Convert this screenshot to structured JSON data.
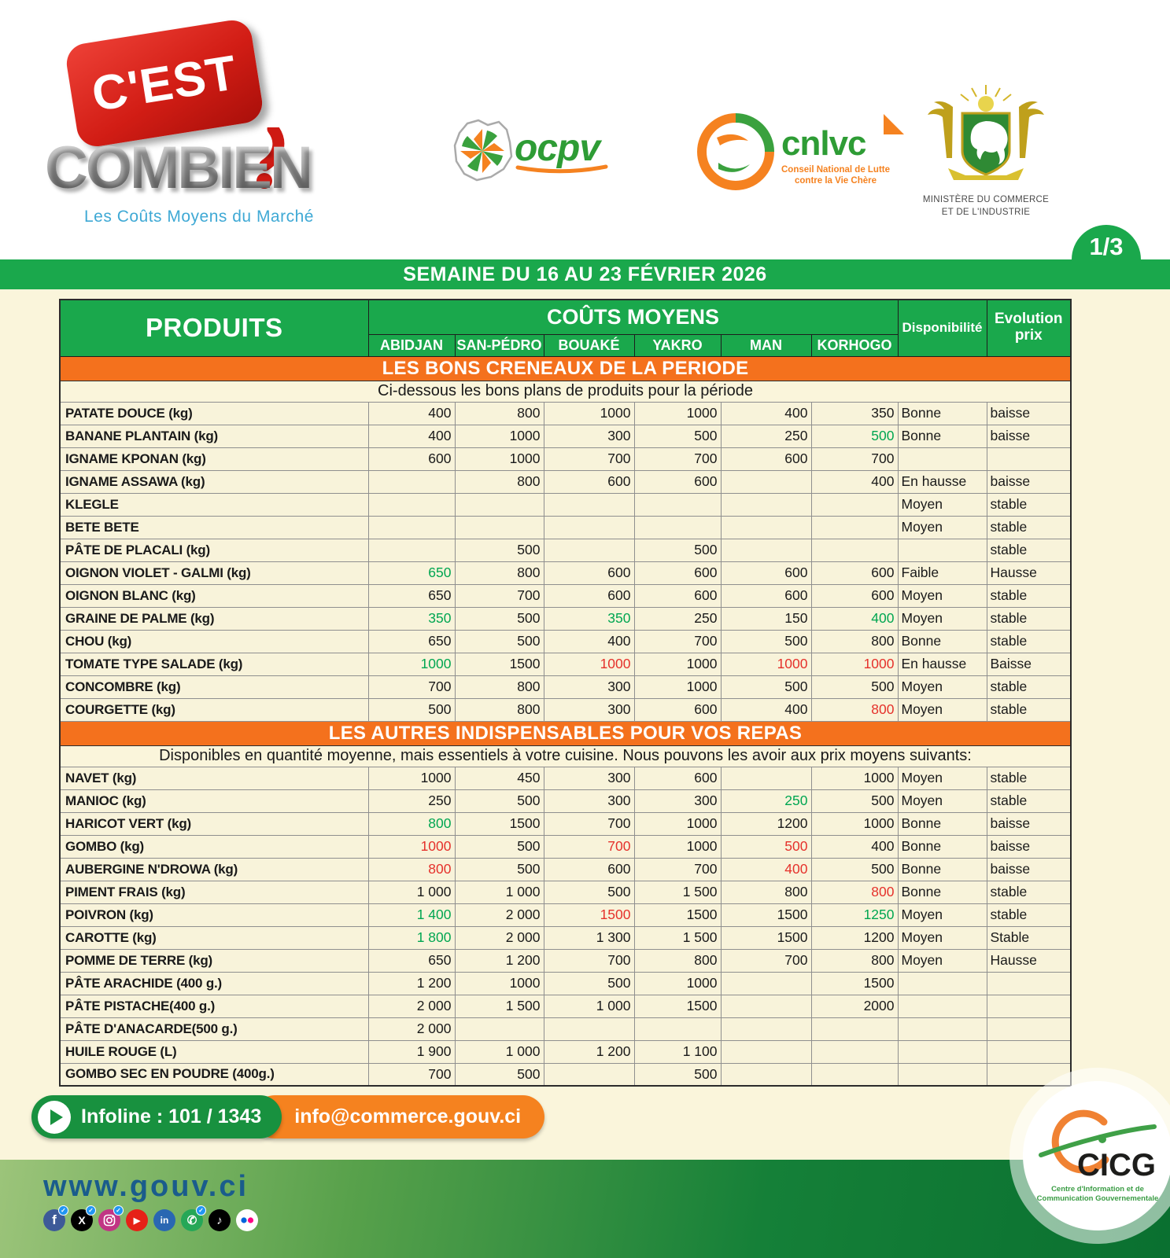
{
  "banner": {
    "title": "SEMAINE DU 16 AU 23 FÉVRIER 2026",
    "page_badge": "1/3"
  },
  "brand": {
    "bubble": "C'EST",
    "name": "COMBIEN",
    "tagline": "Les Coûts Moyens du Marché"
  },
  "partners": {
    "ocpv": "ocpv",
    "cnlvc": "cnlvc",
    "cnlvc_sub1": "Conseil National de Lutte",
    "cnlvc_sub2": "contre la Vie Chère",
    "ministry_line1": "MINISTÈRE DU  COMMERCE",
    "ministry_line2": "ET DE L'INDUSTRIE"
  },
  "table": {
    "products_header": "PRODUITS",
    "couts_header": "COÛTS MOYENS",
    "cities": [
      "ABIDJAN",
      "SAN-PÉDRO",
      "BOUAKÉ",
      "YAKRO",
      "MAN",
      "KORHOGO"
    ],
    "dispo_header": "Disponibilité",
    "evolution_header": "Evolution prix",
    "sections": [
      {
        "title": "LES BONS CRENEAUX DE LA PERIODE",
        "subtitle": "Ci-dessous les bons plans de produits pour la période",
        "rows": [
          {
            "product": "PATATE DOUCE (kg)",
            "prices": [
              "400",
              "800",
              "1000",
              "1000",
              "400",
              "350"
            ],
            "price_colors": [
              "",
              "",
              "",
              "",
              "",
              ""
            ],
            "dispo": "Bonne",
            "evolution": "baisse"
          },
          {
            "product": "BANANE PLANTAIN (kg)",
            "prices": [
              "400",
              "1000",
              "300",
              "500",
              "250",
              "500"
            ],
            "price_colors": [
              "",
              "",
              "",
              "",
              "",
              "g"
            ],
            "dispo": "Bonne",
            "evolution": "baisse"
          },
          {
            "product": "IGNAME KPONAN  (kg)",
            "prices": [
              "600",
              "1000",
              "700",
              "700",
              "600",
              "700"
            ],
            "price_colors": [
              "",
              "",
              "",
              "",
              "",
              ""
            ],
            "dispo": "",
            "evolution": ""
          },
          {
            "product": "IGNAME ASSAWA (kg)",
            "prices": [
              "",
              "800",
              "600",
              "600",
              "",
              "400"
            ],
            "price_colors": [
              "",
              "",
              "",
              "",
              "",
              ""
            ],
            "dispo": "En hausse",
            "evolution": "baisse"
          },
          {
            "product": "KLEGLE",
            "prices": [
              "",
              "",
              "",
              "",
              "",
              ""
            ],
            "price_colors": [
              "",
              "",
              "",
              "",
              "",
              ""
            ],
            "dispo": "Moyen",
            "evolution": "stable"
          },
          {
            "product": "BETE BETE",
            "prices": [
              "",
              "",
              "",
              "",
              "",
              ""
            ],
            "price_colors": [
              "",
              "",
              "",
              "",
              "",
              ""
            ],
            "dispo": "Moyen",
            "evolution": "stable"
          },
          {
            "product": "PÂTE DE PLACALI (kg)",
            "prices": [
              "",
              "500",
              "",
              "500",
              "",
              ""
            ],
            "price_colors": [
              "",
              "",
              "",
              "",
              "",
              ""
            ],
            "dispo": "",
            "evolution": "stable"
          },
          {
            "product": "OIGNON VIOLET - GALMI (kg)",
            "prices": [
              "650",
              "800",
              "600",
              "600",
              "600",
              "600"
            ],
            "price_colors": [
              "g",
              "",
              "",
              "",
              "",
              ""
            ],
            "dispo": "Faible",
            "evolution": "Hausse"
          },
          {
            "product": "OIGNON BLANC  (kg)",
            "prices": [
              "650",
              "700",
              "600",
              "600",
              "600",
              "600"
            ],
            "price_colors": [
              "",
              "",
              "",
              "",
              "",
              ""
            ],
            "dispo": "Moyen",
            "evolution": "stable"
          },
          {
            "product": "GRAINE DE PALME  (kg)",
            "prices": [
              "350",
              "500",
              "350",
              "250",
              "150",
              "400"
            ],
            "price_colors": [
              "g",
              "",
              "g",
              "",
              "",
              "g"
            ],
            "dispo": "Moyen",
            "evolution": "stable"
          },
          {
            "product": "CHOU (kg)",
            "prices": [
              "650",
              "500",
              "400",
              "700",
              "500",
              "800"
            ],
            "price_colors": [
              "",
              "",
              "",
              "",
              "",
              ""
            ],
            "dispo": "Bonne",
            "evolution": "stable"
          },
          {
            "product": "TOMATE TYPE SALADE (kg)",
            "prices": [
              "1000",
              "1500",
              "1000",
              "1000",
              "1000",
              "1000"
            ],
            "price_colors": [
              "g",
              "",
              "r",
              "",
              "r",
              "r"
            ],
            "dispo": "En hausse",
            "evolution": "Baisse"
          },
          {
            "product": "CONCOMBRE (kg)",
            "prices": [
              "700",
              "800",
              "300",
              "1000",
              "500",
              "500"
            ],
            "price_colors": [
              "",
              "",
              "",
              "",
              "",
              ""
            ],
            "dispo": "Moyen",
            "evolution": "stable"
          },
          {
            "product": "COURGETTE (kg)",
            "prices": [
              "500",
              "800",
              "300",
              "600",
              "400",
              "800"
            ],
            "price_colors": [
              "",
              "",
              "",
              "",
              "",
              "r"
            ],
            "dispo": "Moyen",
            "evolution": "stable"
          }
        ]
      },
      {
        "title": "LES AUTRES INDISPENSABLES POUR VOS REPAS",
        "subtitle": "Disponibles en quantité moyenne, mais essentiels à votre cuisine. Nous pouvons les avoir aux prix moyens suivants:",
        "rows": [
          {
            "product": "NAVET (kg)",
            "prices": [
              "1000",
              "450",
              "300",
              "600",
              "",
              "1000"
            ],
            "price_colors": [
              "",
              "",
              "",
              "",
              "",
              ""
            ],
            "dispo": "Moyen",
            "evolution": "stable"
          },
          {
            "product": "MANIOC (kg)",
            "prices": [
              "250",
              "500",
              "300",
              "300",
              "250",
              "500"
            ],
            "price_colors": [
              "",
              "",
              "",
              "",
              "g",
              ""
            ],
            "dispo": "Moyen",
            "evolution": "stable"
          },
          {
            "product": "HARICOT VERT (kg)",
            "prices": [
              "800",
              "1500",
              "700",
              "1000",
              "1200",
              "1000"
            ],
            "price_colors": [
              "g",
              "",
              "",
              "",
              "",
              ""
            ],
            "dispo": "Bonne",
            "evolution": "baisse"
          },
          {
            "product": "GOMBO (kg)",
            "prices": [
              "1000",
              "500",
              "700",
              "1000",
              "500",
              "400"
            ],
            "price_colors": [
              "r",
              "",
              "r",
              "",
              "r",
              ""
            ],
            "dispo": "Bonne",
            "evolution": "baisse"
          },
          {
            "product": "AUBERGINE N'DROWA  (kg)",
            "prices": [
              "800",
              "500",
              "600",
              "700",
              "400",
              "500"
            ],
            "price_colors": [
              "r",
              "",
              "",
              "",
              "r",
              ""
            ],
            "dispo": "Bonne",
            "evolution": "baisse"
          },
          {
            "product": "PIMENT FRAIS (kg)",
            "prices": [
              "1 000",
              "1 000",
              "500",
              "1 500",
              "800",
              "800"
            ],
            "price_colors": [
              "",
              "",
              "",
              "",
              "",
              "r"
            ],
            "dispo": "Bonne",
            "evolution": "stable"
          },
          {
            "product": "POIVRON (kg)",
            "prices": [
              "1 400",
              "2 000",
              "1500",
              "1500",
              "1500",
              "1250"
            ],
            "price_colors": [
              "g",
              "",
              "r",
              "",
              "",
              "g"
            ],
            "dispo": "Moyen",
            "evolution": "stable"
          },
          {
            "product": "CAROTTE (kg)",
            "prices": [
              "1 800",
              "2 000",
              "1 300",
              "1 500",
              "1500",
              "1200"
            ],
            "price_colors": [
              "g",
              "",
              "",
              "",
              "",
              ""
            ],
            "dispo": "Moyen",
            "evolution": "Stable"
          },
          {
            "product": "POMME DE TERRE (kg)",
            "prices": [
              "650",
              "1 200",
              "700",
              "800",
              "700",
              "800"
            ],
            "price_colors": [
              "",
              "",
              "",
              "",
              "",
              ""
            ],
            "dispo": "Moyen",
            "evolution": "Hausse"
          },
          {
            "product": "PÂTE ARACHIDE (400 g.)",
            "prices": [
              "1 200",
              "1000",
              "500",
              "1000",
              "",
              "1500"
            ],
            "price_colors": [
              "",
              "",
              "",
              "",
              "",
              ""
            ],
            "dispo": "",
            "evolution": ""
          },
          {
            "product": "PÂTE PISTACHE(400 g.)",
            "prices": [
              "2 000",
              "1 500",
              "1 000",
              "1500",
              "",
              "2000"
            ],
            "price_colors": [
              "",
              "",
              "",
              "",
              "",
              ""
            ],
            "dispo": "",
            "evolution": ""
          },
          {
            "product": "PÂTE D'ANACARDE(500 g.)",
            "prices": [
              "2 000",
              "",
              "",
              "",
              "",
              ""
            ],
            "price_colors": [
              "",
              "",
              "",
              "",
              "",
              ""
            ],
            "dispo": "",
            "evolution": ""
          },
          {
            "product": "HUILE ROUGE (L)",
            "prices": [
              "1 900",
              "1 000",
              "1 200",
              "1 100",
              "",
              ""
            ],
            "price_colors": [
              "",
              "",
              "",
              "",
              "",
              ""
            ],
            "dispo": "",
            "evolution": ""
          },
          {
            "product": "GOMBO SEC EN POUDRE (400g.)",
            "prices": [
              "700",
              "500",
              "",
              "500",
              "",
              ""
            ],
            "price_colors": [
              "",
              "",
              "",
              "",
              "",
              ""
            ],
            "dispo": "",
            "evolution": ""
          }
        ]
      }
    ]
  },
  "footer": {
    "infoline": "Infoline : 101 / 1343",
    "email": "info@commerce.gouv.ci",
    "website": "www.gouv.ci",
    "cicg_name": "CICG",
    "cicg_sub1": "Centre d'Information et de",
    "cicg_sub2": "Communication Gouvernementale",
    "social": [
      "facebook",
      "x",
      "instagram",
      "youtube",
      "linkedin",
      "whatsapp",
      "tiktok",
      "flickr"
    ]
  },
  "colors": {
    "green": "#1AA84C",
    "orange": "#F4711D",
    "cream": "#FAF5DB",
    "price_green": "#00A651",
    "price_red": "#E5312B",
    "footer_green": "#18913F",
    "footer_orange": "#F5821F",
    "website_blue": "#1A5C8C"
  }
}
